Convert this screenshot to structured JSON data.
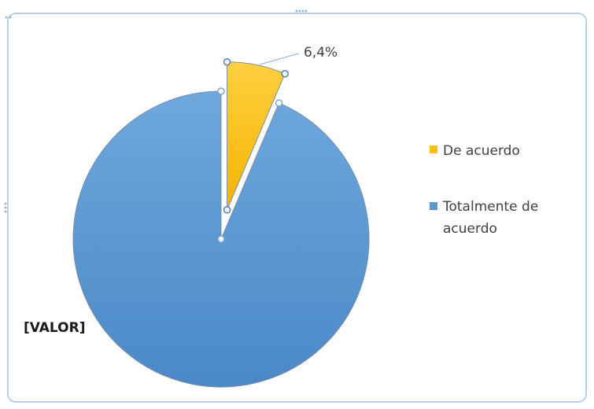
{
  "chart_data": {
    "type": "pie",
    "title": "",
    "categories": [
      "De acuerdo",
      "Totalmente de acuerdo"
    ],
    "values": [
      6.4,
      93.6
    ],
    "unit": "%",
    "data_labels": [
      "6,4%",
      "[VALOR]"
    ],
    "legend": {
      "placement": "right",
      "entries": [
        {
          "name": "De acuerdo",
          "lines": [
            "De acuerdo"
          ]
        },
        {
          "name": "Totalmente de acuerdo",
          "lines": [
            "Totalmente de",
            "acuerdo"
          ]
        }
      ]
    },
    "exploded_slice": "De acuerdo",
    "selected_slice": "De acuerdo",
    "colors": {
      "De acuerdo": "#ffc000",
      "Totalmente de acuerdo": "#5b9bd5"
    }
  },
  "ui": {
    "frame_border_color": "#b9cfe3",
    "handle_color": "#4f81bd"
  }
}
